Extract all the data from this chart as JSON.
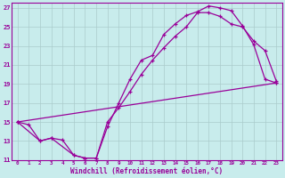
{
  "xlabel": "Windchill (Refroidissement éolien,°C)",
  "background_color": "#c8ecec",
  "line_color": "#990099",
  "grid_color": "#aacccc",
  "xlim": [
    -0.5,
    23.5
  ],
  "ylim": [
    11,
    27.5
  ],
  "xticks": [
    0,
    1,
    2,
    3,
    4,
    5,
    6,
    7,
    8,
    9,
    10,
    11,
    12,
    13,
    14,
    15,
    16,
    17,
    18,
    19,
    20,
    21,
    22,
    23
  ],
  "yticks": [
    11,
    13,
    15,
    17,
    19,
    21,
    23,
    25,
    27
  ],
  "line1_x": [
    0,
    1,
    2,
    3,
    4,
    5,
    6,
    7,
    8,
    9,
    10,
    11,
    12,
    13,
    14,
    15,
    16,
    17,
    18,
    19,
    20,
    21,
    22,
    23
  ],
  "line1_y": [
    15,
    14.7,
    13.0,
    13.3,
    13.1,
    11.5,
    11.2,
    11.2,
    14.5,
    17.0,
    19.5,
    21.5,
    22.0,
    24.2,
    25.3,
    26.2,
    26.6,
    27.2,
    27.0,
    26.7,
    25.1,
    23.1,
    19.5,
    19.1
  ],
  "line2_x": [
    0,
    2,
    3,
    5,
    6,
    7,
    8,
    9,
    10,
    11,
    12,
    13,
    14,
    15,
    16,
    17,
    18,
    19,
    20,
    21,
    22,
    23
  ],
  "line2_y": [
    15,
    13.0,
    13.3,
    11.5,
    11.2,
    11.2,
    15.0,
    16.5,
    18.2,
    20.0,
    21.5,
    22.8,
    24.0,
    25.0,
    26.5,
    26.5,
    26.1,
    25.3,
    25.0,
    23.5,
    22.5,
    19.3
  ],
  "line3_x": [
    0,
    23
  ],
  "line3_y": [
    15,
    19.1
  ]
}
